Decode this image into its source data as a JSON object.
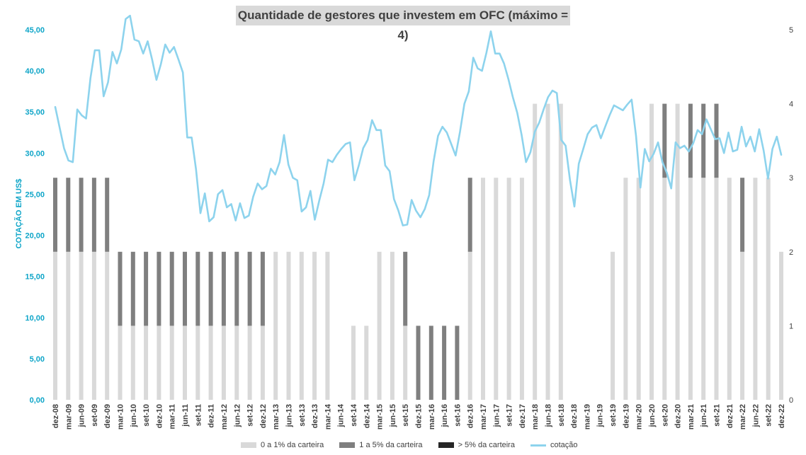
{
  "chart_data": {
    "type": "bar",
    "title": "Quantidade de gestores que investem em OFC (máximo = 4)",
    "ylabel": "COTAÇÃO EM US$",
    "ylim_left": [
      0,
      45
    ],
    "ylim_right": [
      0,
      5
    ],
    "left_ticks": [
      "0,00",
      "5,00",
      "10,00",
      "15,00",
      "20,00",
      "25,00",
      "30,00",
      "35,00",
      "40,00",
      "45,00"
    ],
    "right_ticks": [
      "0",
      "1",
      "2",
      "3",
      "4",
      "5"
    ],
    "x_labels": [
      "dez-08",
      "mar-09",
      "jun-09",
      "set-09",
      "dez-09",
      "mar-10",
      "jun-10",
      "set-10",
      "dez-10",
      "mar-11",
      "jun-11",
      "set-11",
      "dez-11",
      "mar-12",
      "jun-12",
      "set-12",
      "dez-12",
      "mar-13",
      "jun-13",
      "set-13",
      "dez-13",
      "mar-14",
      "jun-14",
      "set-14",
      "dez-14",
      "mar-15",
      "jun-15",
      "set-15",
      "dez-15",
      "mar-16",
      "jun-16",
      "set-16",
      "dez-16",
      "mar-17",
      "jun-17",
      "set-17",
      "dez-17",
      "mar-18",
      "jun-18",
      "set-18",
      "dez-18",
      "mar-19",
      "jun-19",
      "set-19",
      "dez-19",
      "mar-20",
      "jun-20",
      "set-20",
      "dez-20",
      "mar-21",
      "jun-21",
      "set-21",
      "dez-21",
      "mar-22",
      "jun-22",
      "set-22",
      "dez-22"
    ],
    "bars_low": [
      2,
      2,
      2,
      2,
      2,
      1,
      1,
      1,
      1,
      1,
      1,
      1,
      1,
      1,
      1,
      1,
      1,
      2,
      2,
      2,
      2,
      2,
      0,
      1,
      1,
      2,
      2,
      1,
      0,
      0,
      0,
      0,
      2,
      3,
      3,
      3,
      3,
      4,
      4,
      4,
      0,
      0,
      0,
      2,
      3,
      3,
      4,
      3,
      4,
      3,
      3,
      3,
      3,
      2,
      3,
      3,
      2
    ],
    "bars_mid": [
      1,
      1,
      1,
      1,
      1,
      1,
      1,
      1,
      1,
      1,
      1,
      1,
      1,
      1,
      1,
      1,
      1,
      0,
      0,
      0,
      0,
      0,
      0,
      0,
      0,
      0,
      0,
      1,
      1,
      1,
      1,
      1,
      1,
      0,
      0,
      0,
      0,
      0,
      0,
      0,
      0,
      0,
      0,
      0,
      0,
      0,
      0,
      1,
      0,
      1,
      1,
      1,
      0,
      1,
      0,
      0,
      0
    ],
    "bars_high": [
      0,
      0,
      0,
      0,
      0,
      0,
      0,
      0,
      0,
      0,
      0,
      0,
      0,
      0,
      0,
      0,
      0,
      0,
      0,
      0,
      0,
      0,
      0,
      0,
      0,
      0,
      0,
      0,
      0,
      0,
      0,
      0,
      0,
      0,
      0,
      0,
      0,
      0,
      0,
      0,
      0,
      0,
      0,
      0,
      0,
      0,
      0,
      0,
      0,
      0,
      0,
      0,
      0,
      0,
      0,
      0,
      0
    ],
    "line_values": [
      35.6,
      33.1,
      30.6,
      29.1,
      28.9,
      35.3,
      34.6,
      34.2,
      39.1,
      42.5,
      42.5,
      36.9,
      38.6,
      42.3,
      40.9,
      42.6,
      46.3,
      46.7,
      43.8,
      43.6,
      42.1,
      43.6,
      41.4,
      38.9,
      40.8,
      43.2,
      42.2,
      42.9,
      41.4,
      39.8,
      31.9,
      31.9,
      28.0,
      22.7,
      25.1,
      21.7,
      22.2,
      25.0,
      25.5,
      23.4,
      23.8,
      21.8,
      23.9,
      22.1,
      22.4,
      24.7,
      26.3,
      25.6,
      26.0,
      28.1,
      27.4,
      28.9,
      32.2,
      28.6,
      27.0,
      26.7,
      22.9,
      23.4,
      25.4,
      21.9,
      24.2,
      26.3,
      29.2,
      28.9,
      29.8,
      30.5,
      31.1,
      31.3,
      26.7,
      28.5,
      30.6,
      31.6,
      34.0,
      32.8,
      32.8,
      28.5,
      27.8,
      24.4,
      23.0,
      21.2,
      21.3,
      24.3,
      23.0,
      22.2,
      23.2,
      24.9,
      29.0,
      32.1,
      33.2,
      32.5,
      31.1,
      29.7,
      32.6,
      36.0,
      37.5,
      41.6,
      40.3,
      40.0,
      42.2,
      44.8,
      42.1,
      42.1,
      40.9,
      39.0,
      36.8,
      34.9,
      32.2,
      28.9,
      30.1,
      32.6,
      33.7,
      35.3,
      36.8,
      37.6,
      37.3,
      31.6,
      30.9,
      26.7,
      23.5,
      28.7,
      30.5,
      32.3,
      33.1,
      33.4,
      31.8,
      33.2,
      34.6,
      35.8,
      35.5,
      35.2,
      35.9,
      36.5,
      32.1,
      25.8,
      30.5,
      29.0,
      29.9,
      31.3,
      28.9,
      27.6,
      25.7,
      31.3,
      30.6,
      30.9,
      30.2,
      31.2,
      32.8,
      32.3,
      34.1,
      32.9,
      31.7,
      31.8,
      30.0,
      32.5,
      30.2,
      30.4,
      33.2,
      30.8,
      32.0,
      30.2,
      32.9,
      30.3,
      26.9,
      30.5,
      32.0,
      29.8
    ],
    "colors": {
      "low": "#d9d9d9",
      "mid": "#7f7f7f",
      "high": "#262626",
      "line": "#8dd3ed",
      "left_axis": "#0ea5c8"
    },
    "legend": [
      {
        "label": "0 a 1% da carteira",
        "key": "low"
      },
      {
        "label": "1 a 5% da carteira",
        "key": "mid"
      },
      {
        "label": "> 5% da carteira",
        "key": "high"
      },
      {
        "label": "cotação",
        "key": "line"
      }
    ],
    "legend_position": "bottom",
    "grid": false
  }
}
